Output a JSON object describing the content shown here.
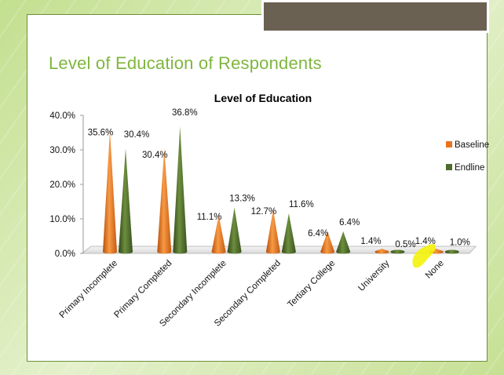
{
  "slide": {
    "title": "Level of Education of Respondents"
  },
  "colors": {
    "baseline": "#e8731e",
    "endline": "#4f6b2a",
    "title": "#7fb63e"
  },
  "chart_data": {
    "type": "bar",
    "shape": "cone",
    "title": "Level of Education",
    "xlabel": "",
    "ylabel": "",
    "ylim": [
      0,
      40
    ],
    "yticks": [
      "0.0%",
      "10.0%",
      "20.0%",
      "30.0%",
      "40.0%"
    ],
    "categories": [
      "Primary Incomplete",
      "Primary Completed",
      "Secondary Incomplete",
      "Secondary Completed",
      "Tertiary College",
      "University",
      "None"
    ],
    "series": [
      {
        "name": "Baseline",
        "values": [
          35.6,
          30.4,
          11.1,
          12.7,
          6.4,
          1.4,
          1.4
        ],
        "labels": [
          "35.6%",
          "30.4%",
          "11.1%",
          "12.7%",
          "6.4%",
          "1.4%",
          "1.4%"
        ]
      },
      {
        "name": "Endline",
        "values": [
          30.4,
          36.8,
          13.3,
          11.6,
          6.4,
          0.5,
          1.0
        ],
        "labels": [
          "30.4%",
          "36.8%",
          "13.3%",
          "11.6%",
          "6.4%",
          "0.5%",
          "1.0%"
        ]
      }
    ],
    "legend_position": "right",
    "grid": false
  }
}
